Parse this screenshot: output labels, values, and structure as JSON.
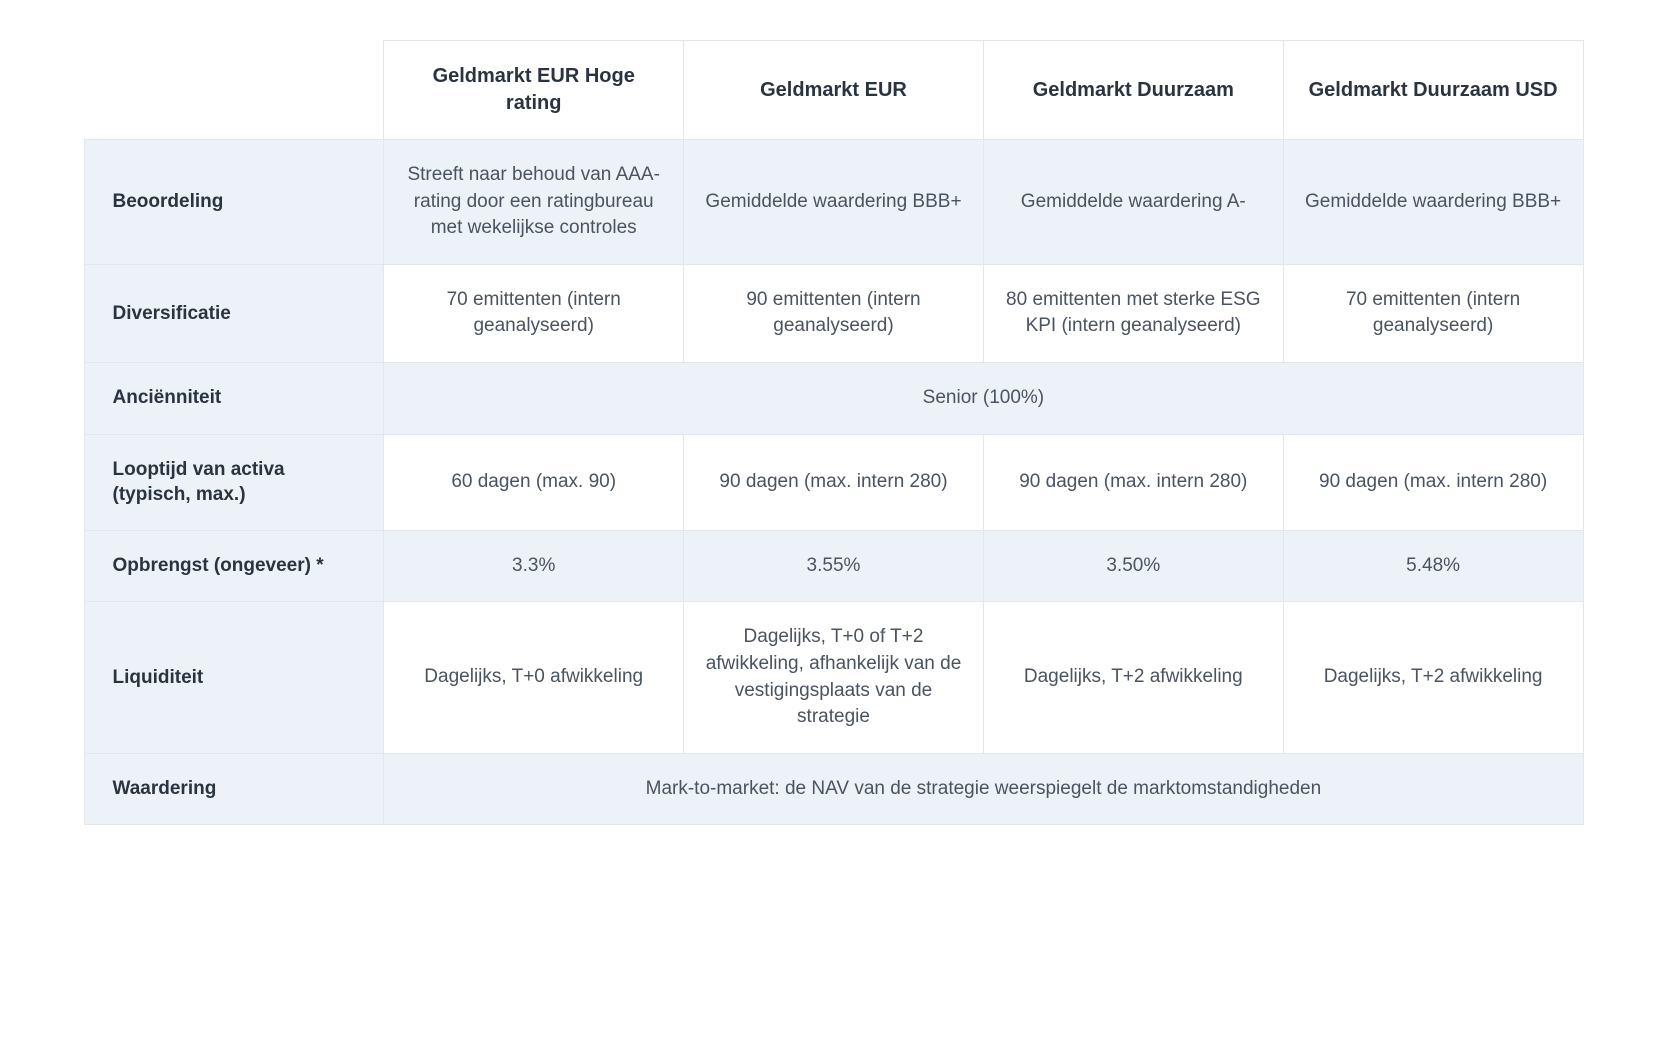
{
  "columns": {
    "col1": "Geldmarkt EUR Hoge rating",
    "col2": "Geldmarkt EUR",
    "col3": "Geldmarkt Duurzaam",
    "col4": "Geldmarkt Duurzaam USD"
  },
  "rows": {
    "beoordeling": {
      "label": "Beoordeling",
      "c1": "Streeft naar behoud van AAA-rating door een ratingbureau met wekelijkse controles",
      "c2": "Gemiddelde waardering BBB+",
      "c3": "Gemiddelde waardering A-",
      "c4": "Gemiddelde waardering BBB+"
    },
    "diversificatie": {
      "label": "Diversificatie",
      "c1": "70 emittenten (intern geanalyseerd)",
      "c2": "90 emittenten (intern geanalyseerd)",
      "c3": "80 emittenten met sterke ESG KPI (intern geanalyseerd)",
      "c4": "70 emittenten (intern geanalyseerd)"
    },
    "ancienniteit": {
      "label": "Anciënniteit",
      "merged": "Senior (100%)"
    },
    "looptijd": {
      "label": "Looptijd van activa (typisch, max.)",
      "c1": "60 dagen (max. 90)",
      "c2": "90 dagen (max. intern 280)",
      "c3": "90 dagen (max. intern 280)",
      "c4": "90 dagen (max. intern 280)"
    },
    "opbrengst": {
      "label": "Opbrengst (ongeveer) *",
      "c1": "3.3%",
      "c2": "3.55%",
      "c3": "3.50%",
      "c4": "5.48%"
    },
    "liquiditeit": {
      "label": "Liquiditeit",
      "c1": "Dagelijks, T+0 afwikkeling",
      "c2": "Dagelijks, T+0 of T+2 afwikkeling, afhankelijk van de vestigingsplaats van de strategie",
      "c3": "Dagelijks, T+2 afwikkeling",
      "c4": "Dagelijks, T+2 afwikkeling"
    },
    "waardering": {
      "label": "Waardering",
      "merged": "Mark-to-market: de NAV van de strategie weerspiegelt de marktomstandigheden"
    }
  }
}
